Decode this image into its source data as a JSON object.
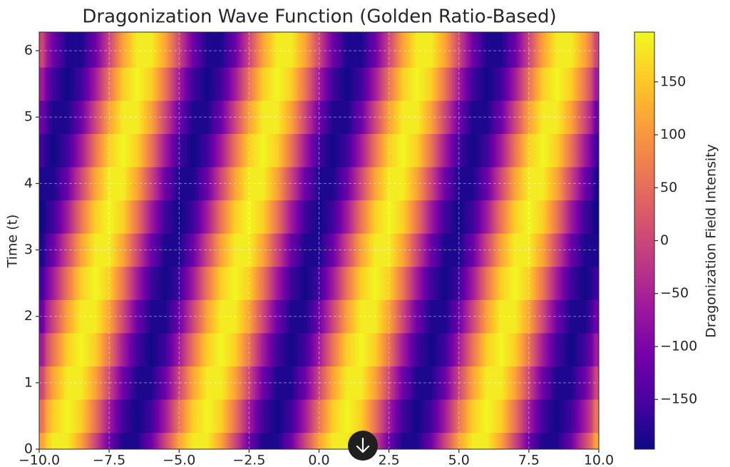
{
  "chart_data": {
    "type": "heatmap",
    "title": "Dragonization Wave Function (Golden Ratio-Based)",
    "y_label": "Time (t)",
    "colorbar_label": "Dragonization Field Intensity",
    "colormap": "plasma",
    "grid": true,
    "xlim": [
      -10,
      10
    ],
    "ylim": [
      0,
      6.28
    ],
    "clim": [
      -197,
      197
    ],
    "xticks": [
      {
        "value": -10,
        "label": "−10.0"
      },
      {
        "value": -7.5,
        "label": "−7.5"
      },
      {
        "value": -5,
        "label": "−5.0"
      },
      {
        "value": -2.5,
        "label": "−2.5"
      },
      {
        "value": 0,
        "label": "0.0"
      },
      {
        "value": 2.5,
        "label": "2.5"
      },
      {
        "value": 5,
        "label": "5.0"
      },
      {
        "value": 7.5,
        "label": "7.5"
      },
      {
        "value": 10,
        "label": "10.0"
      }
    ],
    "yticks": [
      0,
      1,
      2,
      3,
      4,
      5,
      6
    ],
    "cticks": [
      {
        "value": -150,
        "label": "−150"
      },
      {
        "value": -100,
        "label": "−100"
      },
      {
        "value": -50,
        "label": "−50"
      },
      0,
      50,
      100,
      150
    ],
    "x": [
      -10,
      -9.5,
      -9,
      -8.5,
      -8,
      -7.5,
      -7,
      -6.5,
      -6,
      -5.5,
      -5,
      -4.5,
      -4,
      -3.5,
      -3,
      -2.5,
      -2,
      -1.5,
      -1,
      -0.5,
      0,
      0.5,
      1,
      1.5,
      2,
      2.5,
      3,
      3.5,
      4,
      4.5,
      5,
      5.5,
      6,
      6.5,
      7,
      7.5,
      8,
      8.5,
      9,
      9.5,
      10
    ],
    "y": [
      0,
      0.5,
      1,
      1.5,
      2,
      2.5,
      3,
      3.5,
      4,
      4.5,
      5,
      5.5,
      6
    ],
    "z": [
      [
        115,
        185,
        185,
        115,
        0,
        -115,
        -185,
        -185,
        -115,
        0,
        115,
        185,
        185,
        115,
        0,
        -115,
        -185,
        -185,
        -115,
        0,
        115,
        185,
        185,
        115,
        0,
        -115,
        -185,
        -185,
        -115,
        0,
        115,
        185,
        185,
        115,
        0,
        -115,
        -185,
        -185,
        -115,
        0,
        115
      ],
      [
        60,
        158,
        195,
        158,
        60,
        -60,
        -158,
        -195,
        -158,
        -60,
        60,
        158,
        195,
        158,
        60,
        -60,
        -158,
        -195,
        -158,
        -60,
        60,
        158,
        195,
        158,
        60,
        -60,
        -158,
        -195,
        -158,
        -60,
        60,
        158,
        195,
        158,
        60,
        -60,
        -158,
        -195,
        -158,
        -60,
        60
      ],
      [
        0,
        115,
        185,
        185,
        115,
        0,
        -115,
        -185,
        -185,
        -115,
        0,
        115,
        185,
        185,
        115,
        0,
        -115,
        -185,
        -185,
        -115,
        0,
        115,
        185,
        185,
        115,
        0,
        -115,
        -185,
        -185,
        -115,
        0,
        115,
        185,
        185,
        115,
        0,
        -115,
        -185,
        -185,
        -115,
        0
      ],
      [
        -60,
        60,
        158,
        195,
        158,
        60,
        -60,
        -158,
        -195,
        -158,
        -60,
        60,
        158,
        195,
        158,
        60,
        -60,
        -158,
        -195,
        -158,
        -60,
        60,
        158,
        195,
        158,
        60,
        -60,
        -158,
        -195,
        -158,
        -60,
        60,
        158,
        195,
        158,
        60,
        -60,
        -158,
        -195,
        -158,
        -60
      ],
      [
        -115,
        0,
        115,
        185,
        185,
        115,
        0,
        -115,
        -185,
        -185,
        -115,
        0,
        115,
        185,
        185,
        115,
        0,
        -115,
        -185,
        -185,
        -115,
        0,
        115,
        185,
        185,
        115,
        0,
        -115,
        -185,
        -185,
        -115,
        0,
        115,
        185,
        185,
        115,
        0,
        -115,
        -185,
        -185,
        -115
      ],
      [
        -158,
        -60,
        60,
        158,
        195,
        158,
        60,
        -60,
        -158,
        -195,
        -158,
        -60,
        60,
        158,
        195,
        158,
        60,
        -60,
        -158,
        -195,
        -158,
        -60,
        60,
        158,
        195,
        158,
        60,
        -60,
        -158,
        -195,
        -158,
        -60,
        60,
        158,
        195,
        158,
        60,
        -60,
        -158,
        -195,
        -158
      ],
      [
        -185,
        -115,
        0,
        115,
        185,
        185,
        115,
        0,
        -115,
        -185,
        -185,
        -115,
        0,
        115,
        185,
        185,
        115,
        0,
        -115,
        -185,
        -185,
        -115,
        0,
        115,
        185,
        185,
        115,
        0,
        -115,
        -185,
        -185,
        -115,
        0,
        115,
        185,
        185,
        115,
        0,
        -115,
        -185,
        -185
      ],
      [
        -195,
        -158,
        -60,
        60,
        158,
        195,
        158,
        60,
        -60,
        -158,
        -195,
        -158,
        -60,
        60,
        158,
        195,
        158,
        60,
        -60,
        -158,
        -195,
        -158,
        -60,
        60,
        158,
        195,
        158,
        60,
        -60,
        -158,
        -195,
        -158,
        -60,
        60,
        158,
        195,
        158,
        60,
        -60,
        -158,
        -195
      ],
      [
        -185,
        -185,
        -115,
        0,
        115,
        185,
        185,
        115,
        0,
        -115,
        -185,
        -185,
        -115,
        0,
        115,
        185,
        185,
        115,
        0,
        -115,
        -185,
        -185,
        -115,
        0,
        115,
        185,
        185,
        115,
        0,
        -115,
        -185,
        -185,
        -115,
        0,
        115,
        185,
        185,
        115,
        0,
        -115,
        -185
      ],
      [
        -158,
        -195,
        -158,
        -60,
        60,
        158,
        195,
        158,
        60,
        -60,
        -158,
        -195,
        -158,
        -60,
        60,
        158,
        195,
        158,
        60,
        -60,
        -158,
        -195,
        -158,
        -60,
        60,
        158,
        195,
        158,
        60,
        -60,
        -158,
        -195,
        -158,
        -60,
        60,
        158,
        195,
        158,
        60,
        -60,
        -158
      ],
      [
        -115,
        -185,
        -185,
        -115,
        0,
        115,
        185,
        185,
        115,
        0,
        -115,
        -185,
        -185,
        -115,
        0,
        115,
        185,
        185,
        115,
        0,
        -115,
        -185,
        -185,
        -115,
        0,
        115,
        185,
        185,
        115,
        0,
        -115,
        -185,
        -185,
        -115,
        0,
        115,
        185,
        185,
        115,
        0,
        -115
      ],
      [
        -60,
        -158,
        -195,
        -158,
        -60,
        60,
        158,
        195,
        158,
        60,
        -60,
        -158,
        -195,
        -158,
        -60,
        60,
        158,
        195,
        158,
        60,
        -60,
        -158,
        -195,
        -158,
        -60,
        60,
        158,
        195,
        158,
        60,
        -60,
        -158,
        -195,
        -158,
        -60,
        60,
        158,
        195,
        158,
        60,
        -60
      ],
      [
        0,
        -115,
        -185,
        -185,
        -115,
        0,
        115,
        185,
        185,
        115,
        0,
        -115,
        -185,
        -185,
        -115,
        0,
        115,
        185,
        185,
        115,
        0,
        -115,
        -185,
        -185,
        -115,
        0,
        115,
        185,
        185,
        115,
        0,
        -115,
        -185,
        -185,
        -115,
        0,
        115,
        185,
        185,
        115,
        0
      ]
    ]
  }
}
